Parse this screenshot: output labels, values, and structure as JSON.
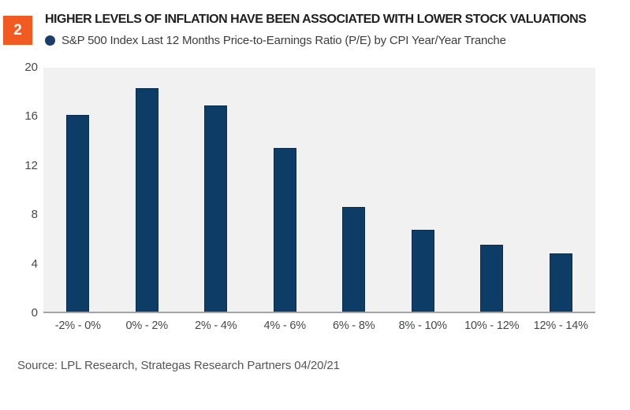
{
  "figure": {
    "badge": "2",
    "title": "HIGHER LEVELS OF INFLATION HAVE BEEN ASSOCIATED WITH LOWER STOCK VALUATIONS",
    "legend_label": "S&P 500 Index Last 12 Months Price-to-Earnings Ratio (P/E) by CPI Year/Year Tranche",
    "source": "Source: LPL Research, Strategas Research Partners 04/20/21"
  },
  "colors": {
    "accent_orange": "#F15B22",
    "bar_navy": "#0D3D66",
    "bar_border": "#0B2F50",
    "legend_dot": "#1C3D6B",
    "plot_bg": "#F1F1F2",
    "axis_line": "#A5A5A5"
  },
  "chart_data": {
    "type": "bar",
    "title": "HIGHER LEVELS OF INFLATION HAVE BEEN ASSOCIATED WITH LOWER STOCK VALUATIONS",
    "series_name": "S&P 500 Index Last 12 Months Price-to-Earnings Ratio (P/E) by CPI Year/Year Tranche",
    "categories": [
      "-2% - 0%",
      "0% - 2%",
      "2% - 4%",
      "4% - 6%",
      "6% - 8%",
      "8% - 10%",
      "10% - 12%",
      "12% - 14%"
    ],
    "values": [
      16.1,
      18.3,
      16.9,
      13.4,
      8.6,
      6.7,
      5.5,
      4.8
    ],
    "xlabel": "",
    "ylabel": "",
    "ylim": [
      0,
      20
    ],
    "yticks": [
      0,
      4,
      8,
      12,
      16,
      20
    ],
    "grid": false,
    "legend_position": "top-left",
    "bar_color": "#0D3D66"
  }
}
